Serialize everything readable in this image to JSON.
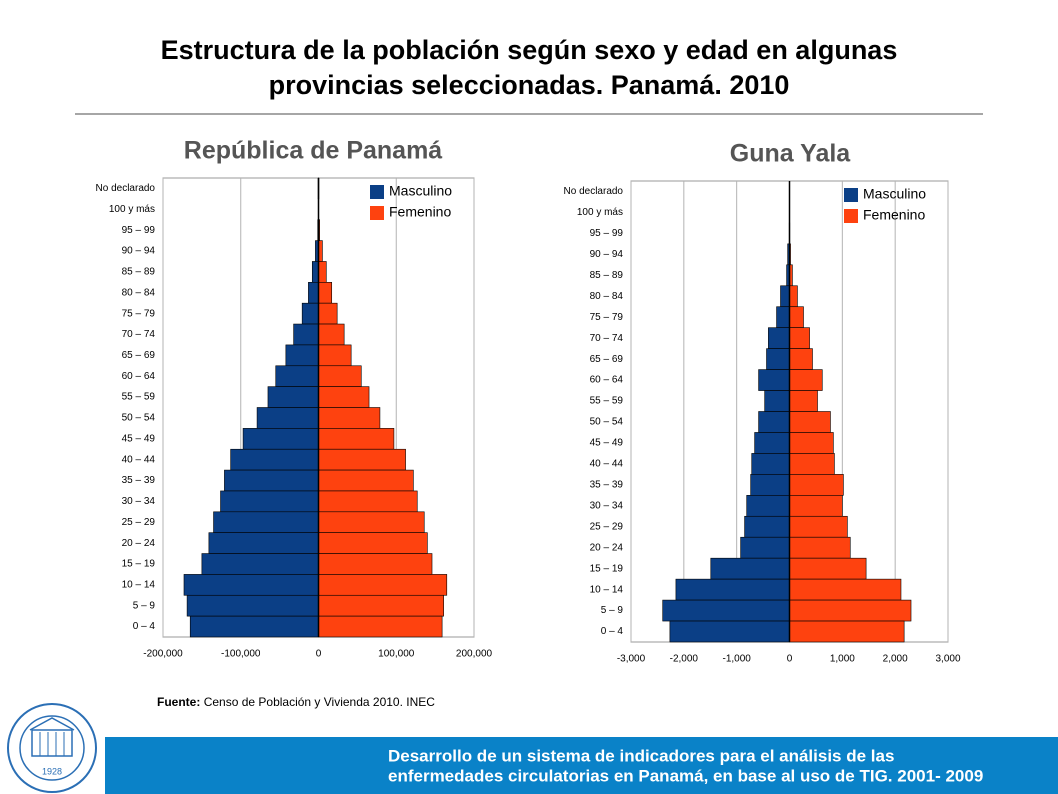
{
  "header": {
    "title_line1": "Estructura de la población según sexo y edad en algunas",
    "title_line2": "provincias seleccionadas. Panamá. 2010"
  },
  "chart_data": [
    {
      "type": "pyramid",
      "title": "República de Panamá",
      "categories": [
        "No declarado",
        "100 y más",
        "95 – 99",
        "90 – 94",
        "85 – 89",
        "80 – 84",
        "75 – 79",
        "70 – 74",
        "65 – 69",
        "60 – 64",
        "55 – 59",
        "50 – 54",
        "45 – 49",
        "40 – 44",
        "35 – 39",
        "30 – 34",
        "25 – 29",
        "20 – 24",
        "15 – 19",
        "10 – 14",
        "5 – 9",
        "0 – 4"
      ],
      "series": [
        {
          "name": "Masculino",
          "color": "#0b3f86",
          "values": [
            -500,
            -300,
            -1000,
            -4000,
            -8000,
            -13000,
            -21000,
            -32000,
            -42000,
            -55000,
            -65000,
            -79000,
            -97000,
            -113000,
            -121000,
            -126000,
            -135000,
            -141000,
            -150000,
            -173000,
            -169000,
            -165000
          ]
        },
        {
          "name": "Femenino",
          "color": "#fe420f",
          "values": [
            500,
            300,
            1500,
            5000,
            10000,
            17000,
            24000,
            33000,
            42000,
            55000,
            65000,
            79000,
            97000,
            112000,
            122000,
            127000,
            136000,
            140000,
            146000,
            165000,
            161000,
            159000
          ]
        }
      ],
      "xlim": [
        -200000,
        200000
      ],
      "xticks": [
        {
          "value": -200000,
          "label": "-200,000"
        },
        {
          "value": -100000,
          "label": "-100,000"
        },
        0,
        {
          "value": 100000,
          "label": "100,000"
        },
        {
          "value": 200000,
          "label": "200,000"
        }
      ],
      "grid": true,
      "legend": "upper right"
    },
    {
      "type": "pyramid",
      "title": "Guna Yala",
      "categories": [
        "No declarado",
        "100 y más",
        "95 – 99",
        "90 – 94",
        "85 – 89",
        "80 – 84",
        "75 – 79",
        "70 – 74",
        "65 – 69",
        "60 – 64",
        "55 – 59",
        "50 – 54",
        "45 – 49",
        "40 – 44",
        "35 – 39",
        "30 – 34",
        "25 – 29",
        "20 – 24",
        "15 – 19",
        "10 – 14",
        "5 – 9",
        "0 – 4"
      ],
      "series": [
        {
          "name": "Masculino",
          "color": "#0b3f86",
          "values": [
            0,
            0,
            -5,
            -35,
            -55,
            -170,
            -245,
            -400,
            -435,
            -585,
            -470,
            -585,
            -660,
            -715,
            -735,
            -810,
            -850,
            -925,
            -1490,
            -2150,
            -2400,
            -2264
          ]
        },
        {
          "name": "Femenino",
          "color": "#fe420f",
          "values": [
            0,
            0,
            5,
            20,
            55,
            150,
            265,
            380,
            435,
            620,
            530,
            775,
            830,
            850,
            1020,
            1000,
            1095,
            1150,
            1450,
            2110,
            2300,
            2170
          ]
        }
      ],
      "xlim": [
        -3000,
        3000
      ],
      "xticks": [
        {
          "value": -3000,
          "label": "-3,000"
        },
        {
          "value": -2000,
          "label": "-2,000"
        },
        {
          "value": -1000,
          "label": "-1,000"
        },
        0,
        {
          "value": 1000,
          "label": "1,000"
        },
        {
          "value": 2000,
          "label": "2,000"
        },
        {
          "value": 3000,
          "label": "3,000"
        }
      ],
      "grid": true,
      "legend": "upper right"
    }
  ],
  "source": {
    "label": "Fuente:",
    "text": "Censo de Población y Vivienda  2010. INEC"
  },
  "logo": {
    "year": "1928"
  },
  "footer": {
    "line1": "Desarrollo de un sistema de indicadores para el análisis de las",
    "line2": "enfermedades circulatorias en Panamá, en base al uso de TIG. 2001- 2009"
  }
}
